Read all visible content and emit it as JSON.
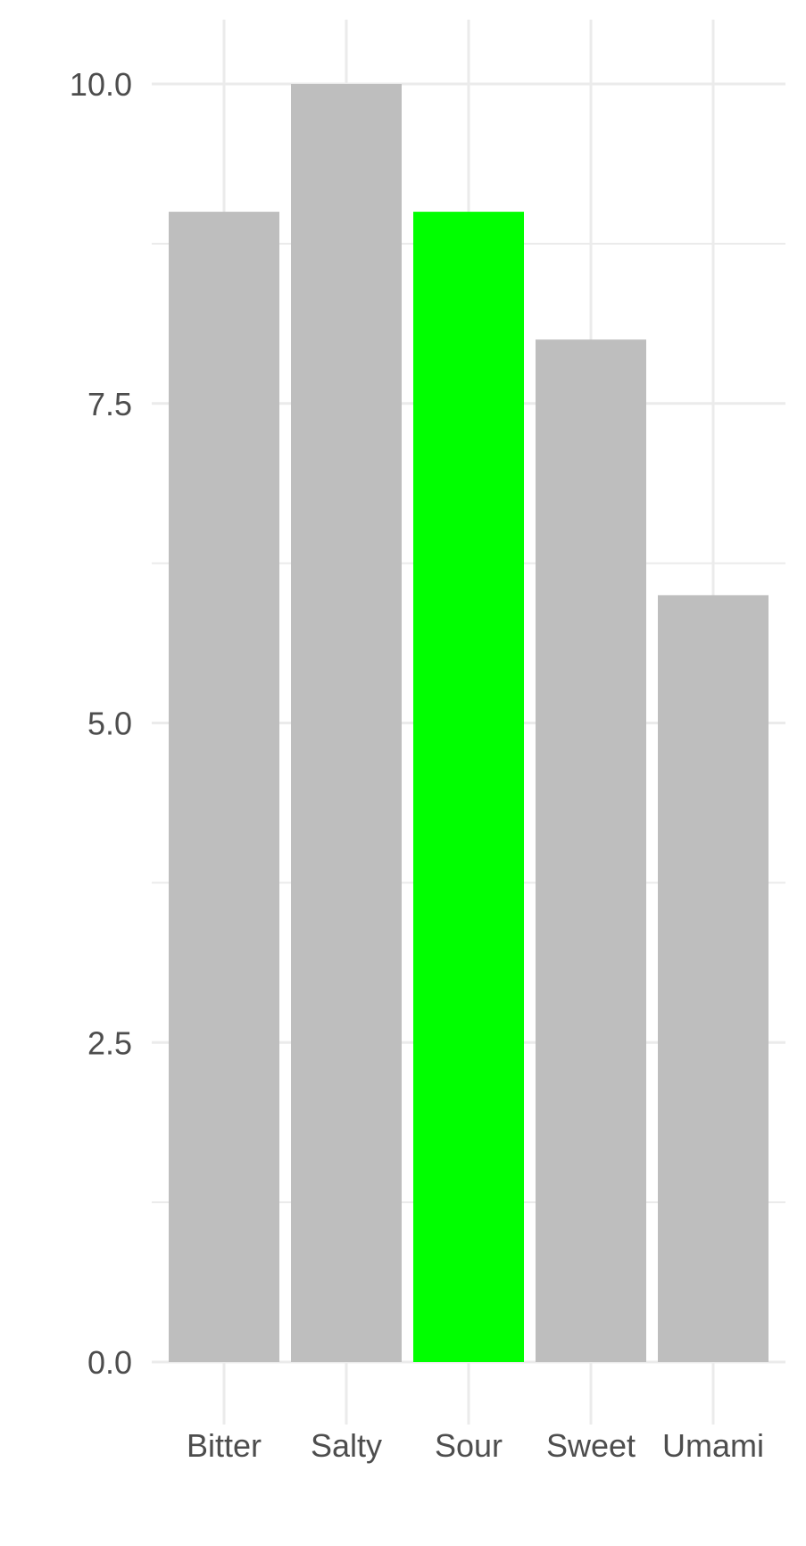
{
  "chart_data": {
    "type": "bar",
    "categories": [
      "Bitter",
      "Salty",
      "Sour",
      "Sweet",
      "Umami"
    ],
    "values": [
      9,
      10,
      9,
      8,
      6
    ],
    "highlight": "Sour",
    "ylim": [
      0,
      10
    ],
    "yticks": [
      0,
      2.5,
      5,
      7.5,
      10
    ],
    "ytick_labels": [
      "0.0",
      "2.5",
      "5.0",
      "7.5",
      "10.0"
    ],
    "grid": true,
    "title": "",
    "xlabel": "",
    "ylabel": "",
    "colors": {
      "bar": "#bebebe",
      "highlight": "#00ff00",
      "grid": "#ebebeb",
      "text": "#4d4d4d"
    }
  }
}
